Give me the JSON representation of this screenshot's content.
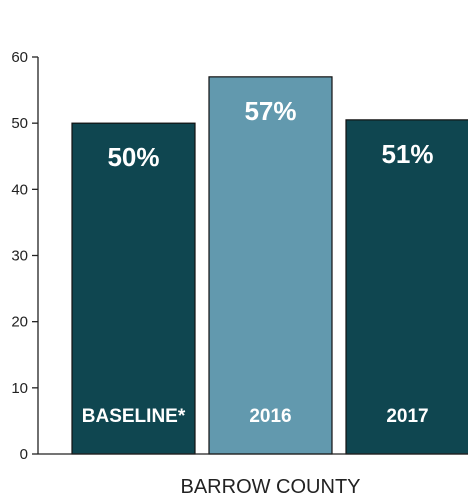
{
  "chart_data": {
    "type": "bar",
    "categories": [
      "BASELINE*",
      "2016",
      "2017"
    ],
    "values": [
      50,
      57,
      50.5
    ],
    "value_labels": [
      "50%",
      "57%",
      "51%"
    ],
    "xlabel": "BARROW COUNTY",
    "ylabel": "",
    "ylim": [
      0,
      60
    ],
    "yticks": [
      0,
      10,
      20,
      30,
      40,
      50,
      60
    ],
    "grid": false,
    "legend": "none",
    "bar_colors": [
      "#0f4650",
      "#6299ae",
      "#0f4650"
    ],
    "bar_stroke": "#111111",
    "axis_color": "#222222"
  }
}
